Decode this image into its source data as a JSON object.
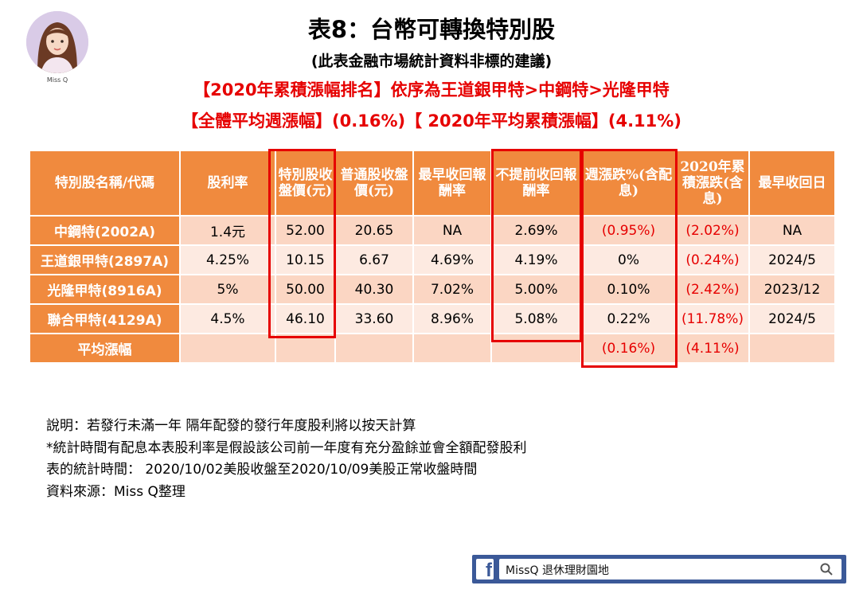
{
  "header": {
    "title": "表8：台幣可轉換特別股",
    "subtitle": "(此表金融市場統計資料非標的建議)",
    "ranking_line": "【2020年累積漲幅排名】依序為王道銀甲特>中鋼特>光隆甲特",
    "average_line": "【全體平均週漲幅】(0.16%)【 2020年平均累積漲幅】(4.11%)"
  },
  "avatar": {
    "caption": "Miss Q"
  },
  "table": {
    "columns": [
      "特別股名稱/代碼",
      "股利率",
      "特別股收盤價(元)",
      "普通股收盤價(元)",
      "最早收回報酬率",
      "不提前收回報酬率",
      "週漲跌%(含配息)",
      "2020年累積漲跌(含息)",
      "最早收回日"
    ],
    "rows": [
      {
        "name": "中鋼特(2002A)",
        "dividend": "1.4元",
        "pref_close": "52.00",
        "common_close": "20.65",
        "early_return": "NA",
        "hold_return": "2.69%",
        "weekly": "(0.95%)",
        "ytd": "(2.02%)",
        "call_date": "NA"
      },
      {
        "name": "王道銀甲特(2897A)",
        "dividend": "4.25%",
        "pref_close": "10.15",
        "common_close": "6.67",
        "early_return": "4.69%",
        "hold_return": "4.19%",
        "weekly": "0%",
        "ytd": "(0.24%)",
        "call_date": "2024/5"
      },
      {
        "name": "光隆甲特(8916A)",
        "dividend": "5%",
        "pref_close": "50.00",
        "common_close": "40.30",
        "early_return": "7.02%",
        "hold_return": "5.00%",
        "weekly": "0.10%",
        "ytd": "(2.42%)",
        "call_date": "2023/12"
      },
      {
        "name": "聯合甲特(4129A)",
        "dividend": "4.5%",
        "pref_close": "46.10",
        "common_close": "33.60",
        "early_return": "8.96%",
        "hold_return": "5.08%",
        "weekly": "0.22%",
        "ytd": "(11.78%)",
        "call_date": "2024/5"
      }
    ],
    "average": {
      "label": "平均漲幅",
      "weekly": "(0.16%)",
      "ytd": "(4.11%)"
    }
  },
  "notes": [
    "說明：若發行未滿一年  隔年配發的發行年度股利將以按天計算",
    "*統計時間有配息本表股利率是假設該公司前一年度有充分盈餘並會全額配發股利",
    "表的統計時間： 2020/10/02美股收盤至2020/10/09美股正常收盤時間",
    "資料來源：Miss Q整理"
  ],
  "facebook_bar": {
    "logo": "f",
    "search_text": "MissQ 退休理財園地",
    "icon": "search-icon"
  },
  "colors": {
    "accent_orange": "#f08a3e",
    "row_dark": "#fbd6c3",
    "row_light": "#fdeae1",
    "highlight_red": "#e60000",
    "facebook_blue": "#3b5998"
  }
}
